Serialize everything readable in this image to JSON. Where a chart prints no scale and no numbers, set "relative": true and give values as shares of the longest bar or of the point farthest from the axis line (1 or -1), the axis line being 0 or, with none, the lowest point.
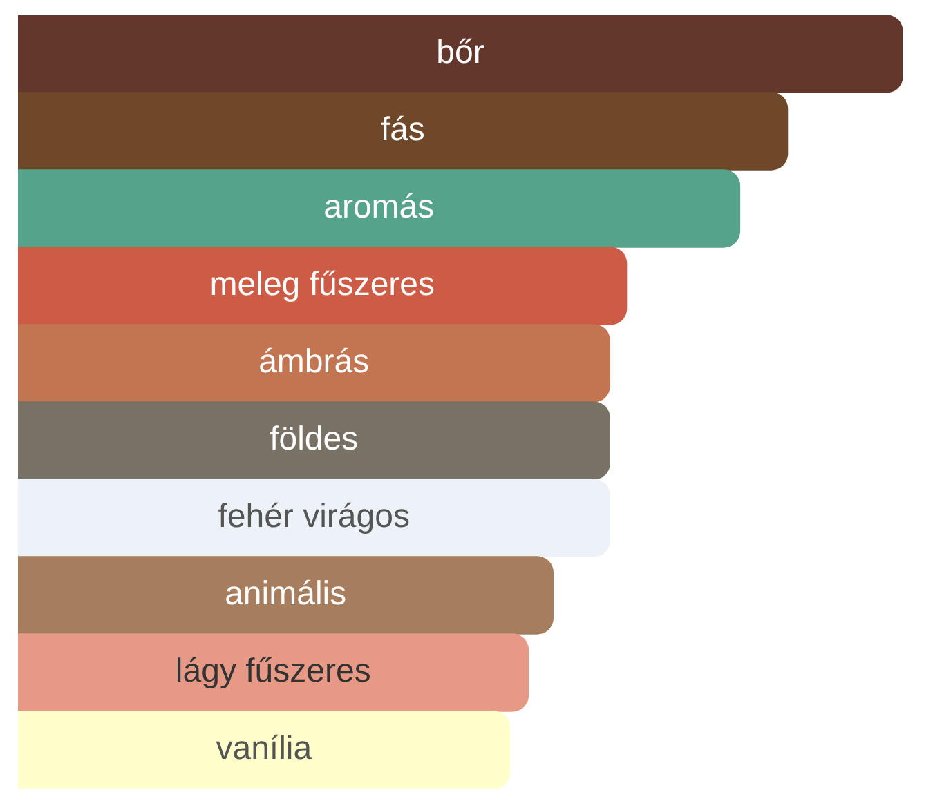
{
  "chart_data": {
    "type": "bar",
    "orientation": "horizontal",
    "relative": true,
    "categories": [
      "bőr",
      "fás",
      "aromás",
      "meleg fűszeres",
      "ámbrás",
      "földes",
      "fehér virágos",
      "animális",
      "lágy fűszeres",
      "vanília"
    ],
    "values": [
      1,
      0.87,
      0.816,
      0.688,
      0.669,
      0.669,
      0.669,
      0.605,
      0.577,
      0.556
    ],
    "colors": [
      "#63372c",
      "#6f4829",
      "#55a38a",
      "#cd5b45",
      "#c37450",
      "#787166",
      "#edf2f9",
      "#a67d5d",
      "#e69a85",
      "#ffffcc"
    ]
  }
}
